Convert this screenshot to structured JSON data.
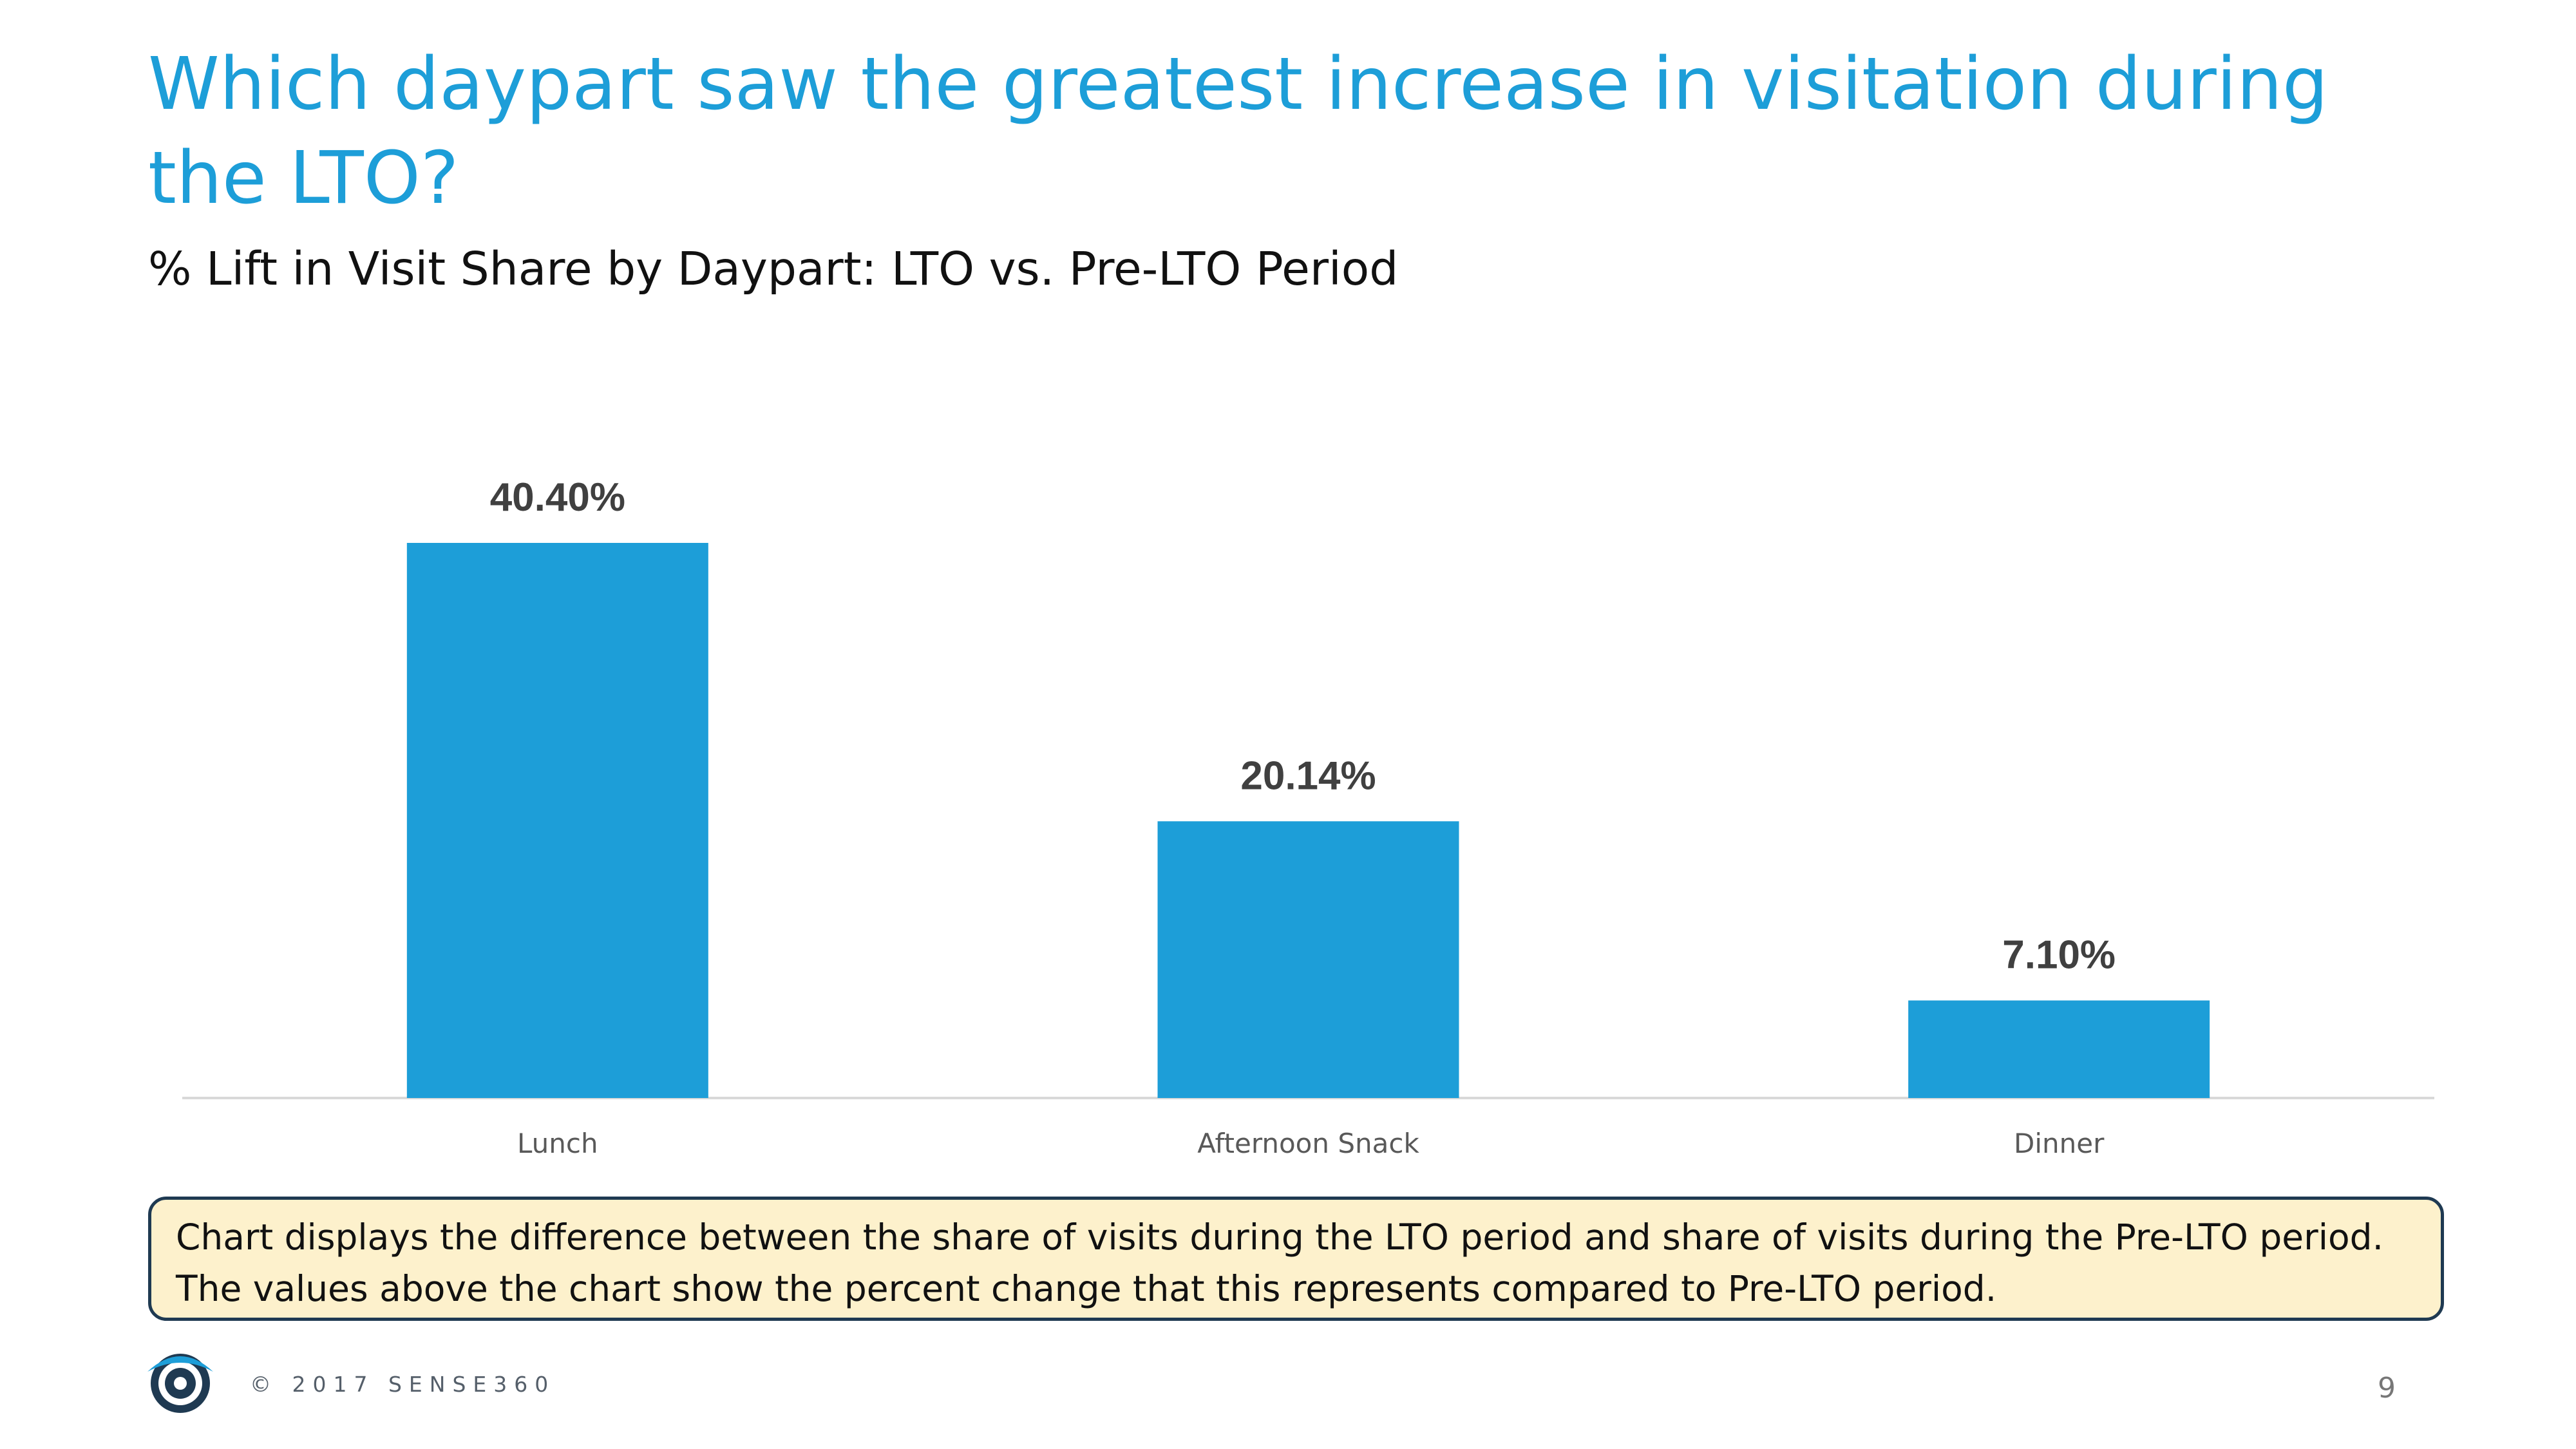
{
  "slide": {
    "title": "Which daypart saw the greatest increase in visitation during the LTO?",
    "subtitle": "% Lift in Visit Share by Daypart: LTO vs. Pre-LTO Period",
    "note_lines": [
      "Chart displays the difference between the share of visits during the LTO period and share of visits during the Pre-LTO period.",
      "The values above the chart show the percent change that this represents compared to Pre-LTO period."
    ],
    "copyright": "© 2017 SENSE360",
    "page_number": "9",
    "logo_icon": "sense360-eye-logo-icon",
    "colors": {
      "title": "#1d9ed8",
      "bar": "#1d9ed8",
      "note_background": "#fdf1cc",
      "note_border": "#1f3a52"
    }
  },
  "chart_data": {
    "type": "bar",
    "title": "% Lift in Visit Share by Daypart: LTO vs. Pre-LTO Period",
    "xlabel": "",
    "ylabel": "",
    "categories": [
      "Lunch",
      "Afternoon Snack",
      "Dinner"
    ],
    "values": [
      40.4,
      20.14,
      7.1
    ],
    "data_labels": [
      "40.40%",
      "20.14%",
      "7.10%"
    ],
    "unit": "%",
    "ylim": [
      0,
      40.4
    ],
    "grid": false,
    "legend": "none",
    "bar_color": "#1d9ed8"
  }
}
